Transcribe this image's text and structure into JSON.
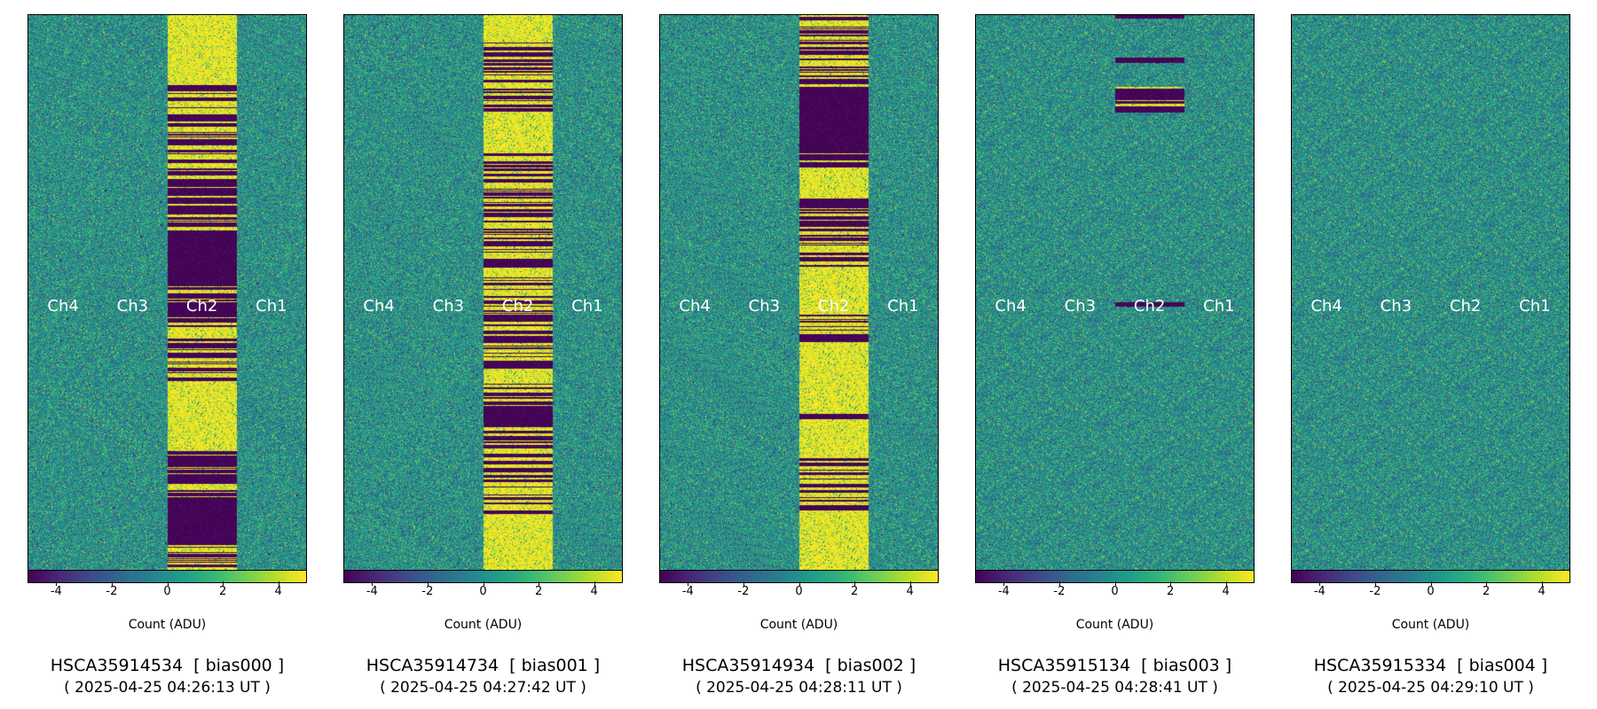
{
  "chart_data": [
    {
      "type": "heatmap",
      "title": "HSCA35914534  [ bias000 ]",
      "subtitle": "( 2025-04-25 04:26:13 UT )",
      "colorbar_label": "Count (ADU)",
      "clim": [
        -5,
        5
      ],
      "colorbar_ticks": [
        "-4",
        "-2",
        "0",
        "2",
        "4"
      ],
      "colormap": "viridis",
      "channels": [
        "Ch4",
        "Ch3",
        "Ch2",
        "Ch1"
      ],
      "noise_sigma": 1.5,
      "ch2_bands": [
        [
          "high",
          0,
          120
        ],
        [
          "mixed",
          120,
          250
        ],
        [
          "mixed",
          250,
          390
        ],
        [
          "low",
          390,
          490
        ],
        [
          "mixed",
          490,
          660
        ],
        [
          "high",
          660,
          780
        ],
        [
          "mixed",
          780,
          870
        ],
        [
          "low",
          870,
          950
        ],
        [
          "mixed",
          950,
          1000
        ]
      ]
    },
    {
      "type": "heatmap",
      "title": "HSCA35914734  [ bias001 ]",
      "subtitle": "( 2025-04-25 04:27:42 UT )",
      "colorbar_label": "Count (ADU)",
      "clim": [
        -5,
        5
      ],
      "colorbar_ticks": [
        "-4",
        "-2",
        "0",
        "2",
        "4"
      ],
      "colormap": "viridis",
      "channels": [
        "Ch4",
        "Ch3",
        "Ch2",
        "Ch1"
      ],
      "noise_sigma": 1.5,
      "ch2_bands": [
        [
          "high",
          0,
          45
        ],
        [
          "mixed",
          45,
          180
        ],
        [
          "high",
          180,
          250
        ],
        [
          "mixed",
          250,
          440
        ],
        [
          "mixed",
          440,
          705
        ],
        [
          "low",
          705,
          740
        ],
        [
          "mixed",
          740,
          900
        ],
        [
          "high",
          900,
          1000
        ]
      ]
    },
    {
      "type": "heatmap",
      "title": "HSCA35914934  [ bias002 ]",
      "subtitle": "( 2025-04-25 04:28:11 UT )",
      "colorbar_label": "Count (ADU)",
      "clim": [
        -5,
        5
      ],
      "colorbar_ticks": [
        "-4",
        "-2",
        "0",
        "2",
        "4"
      ],
      "colormap": "viridis",
      "channels": [
        "Ch4",
        "Ch3",
        "Ch2",
        "Ch1"
      ],
      "noise_sigma": 1.5,
      "ch2_bands": [
        [
          "mixed",
          0,
          130
        ],
        [
          "low",
          130,
          250
        ],
        [
          "mixed",
          250,
          275
        ],
        [
          "high",
          275,
          330
        ],
        [
          "mixed",
          330,
          460
        ],
        [
          "high",
          460,
          540
        ],
        [
          "mixed",
          540,
          600
        ],
        [
          "high",
          600,
          720
        ],
        [
          "mixed",
          720,
          730
        ],
        [
          "high",
          730,
          800
        ],
        [
          "mixed",
          800,
          900
        ],
        [
          "high",
          900,
          1000
        ]
      ]
    },
    {
      "type": "heatmap",
      "title": "HSCA35915134  [ bias003 ]",
      "subtitle": "( 2025-04-25 04:28:41 UT )",
      "colorbar_label": "Count (ADU)",
      "clim": [
        -5,
        5
      ],
      "colorbar_ticks": [
        "-4",
        "-2",
        "0",
        "2",
        "4"
      ],
      "colormap": "viridis",
      "channels": [
        "Ch4",
        "Ch3",
        "Ch2",
        "Ch1"
      ],
      "noise_sigma": 1.5,
      "ch2_bands": [
        [
          "low",
          0,
          5
        ],
        [
          "low",
          77,
          85
        ],
        [
          "mixed",
          130,
          175
        ],
        [
          "low",
          519,
          524
        ]
      ]
    },
    {
      "type": "heatmap",
      "title": "HSCA35915334  [ bias004 ]",
      "subtitle": "( 2025-04-25 04:29:10 UT )",
      "colorbar_label": "Count (ADU)",
      "clim": [
        -5,
        5
      ],
      "colorbar_ticks": [
        "-4",
        "-2",
        "0",
        "2",
        "4"
      ],
      "colormap": "viridis",
      "channels": [
        "Ch4",
        "Ch3",
        "Ch2",
        "Ch1"
      ],
      "noise_sigma": 1.5,
      "ch2_bands": []
    }
  ]
}
